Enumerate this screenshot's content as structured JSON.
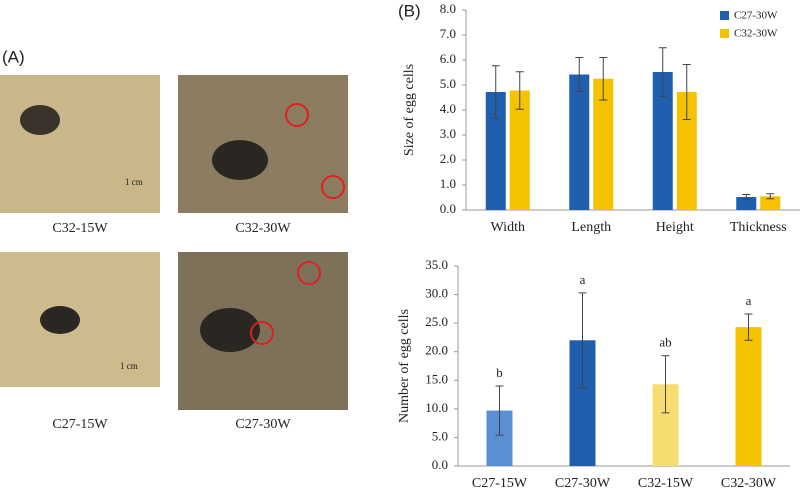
{
  "panel_a": {
    "label": "(A)",
    "captions": [
      "C32-15W",
      "C32-30W",
      "C27-15W",
      "C27-30W"
    ],
    "scale_text": "1 cm"
  },
  "chart_data": [
    {
      "type": "bar",
      "panel": "(B)",
      "ylabel": "Size of egg cells",
      "categories": [
        "Width",
        "Length",
        "Height",
        "Thickness"
      ],
      "series": [
        {
          "name": "C27-30W",
          "color": "#1f5fad",
          "values": [
            4.72,
            5.42,
            5.52,
            0.52
          ],
          "errors": [
            1.05,
            0.68,
            0.97,
            0.1
          ]
        },
        {
          "name": "C32-30W",
          "color": "#f5c200",
          "values": [
            4.78,
            5.25,
            4.72,
            0.55
          ],
          "errors": [
            0.75,
            0.85,
            1.1,
            0.1
          ]
        }
      ],
      "ylim": [
        0,
        8
      ],
      "yticks": [
        {
          "value": 0,
          "label": "0.0"
        },
        {
          "value": 1,
          "label": "1.0"
        },
        {
          "value": 2,
          "label": "2.0"
        },
        {
          "value": 3,
          "label": "3.0"
        },
        {
          "value": 4,
          "label": "4.0"
        },
        {
          "value": 5,
          "label": "5.0"
        },
        {
          "value": 6,
          "label": "6.0"
        },
        {
          "value": 7,
          "label": "7.0"
        },
        {
          "value": 8,
          "label": "8.0"
        }
      ],
      "legend": "top-right"
    },
    {
      "type": "bar",
      "ylabel": "Number of egg cells",
      "categories": [
        "C27-15W",
        "C27-30W",
        "C32-15W",
        "C32-30W"
      ],
      "values": [
        9.7,
        22.0,
        14.3,
        24.3
      ],
      "errors": [
        4.3,
        8.3,
        5.0,
        2.3
      ],
      "colors": [
        "#5b8fd4",
        "#1f5fad",
        "#f7dc6f",
        "#f5c200"
      ],
      "annotations": [
        "b",
        "a",
        "ab",
        "a"
      ],
      "ylim": [
        0,
        35
      ],
      "yticks": [
        {
          "value": 0,
          "label": "0.0"
        },
        {
          "value": 5,
          "label": "5.0"
        },
        {
          "value": 10,
          "label": "10.0"
        },
        {
          "value": 15,
          "label": "15.0"
        },
        {
          "value": 20,
          "label": "20.0"
        },
        {
          "value": 25,
          "label": "25.0"
        },
        {
          "value": 30,
          "label": "30.0"
        },
        {
          "value": 35,
          "label": "35.0"
        }
      ]
    }
  ]
}
